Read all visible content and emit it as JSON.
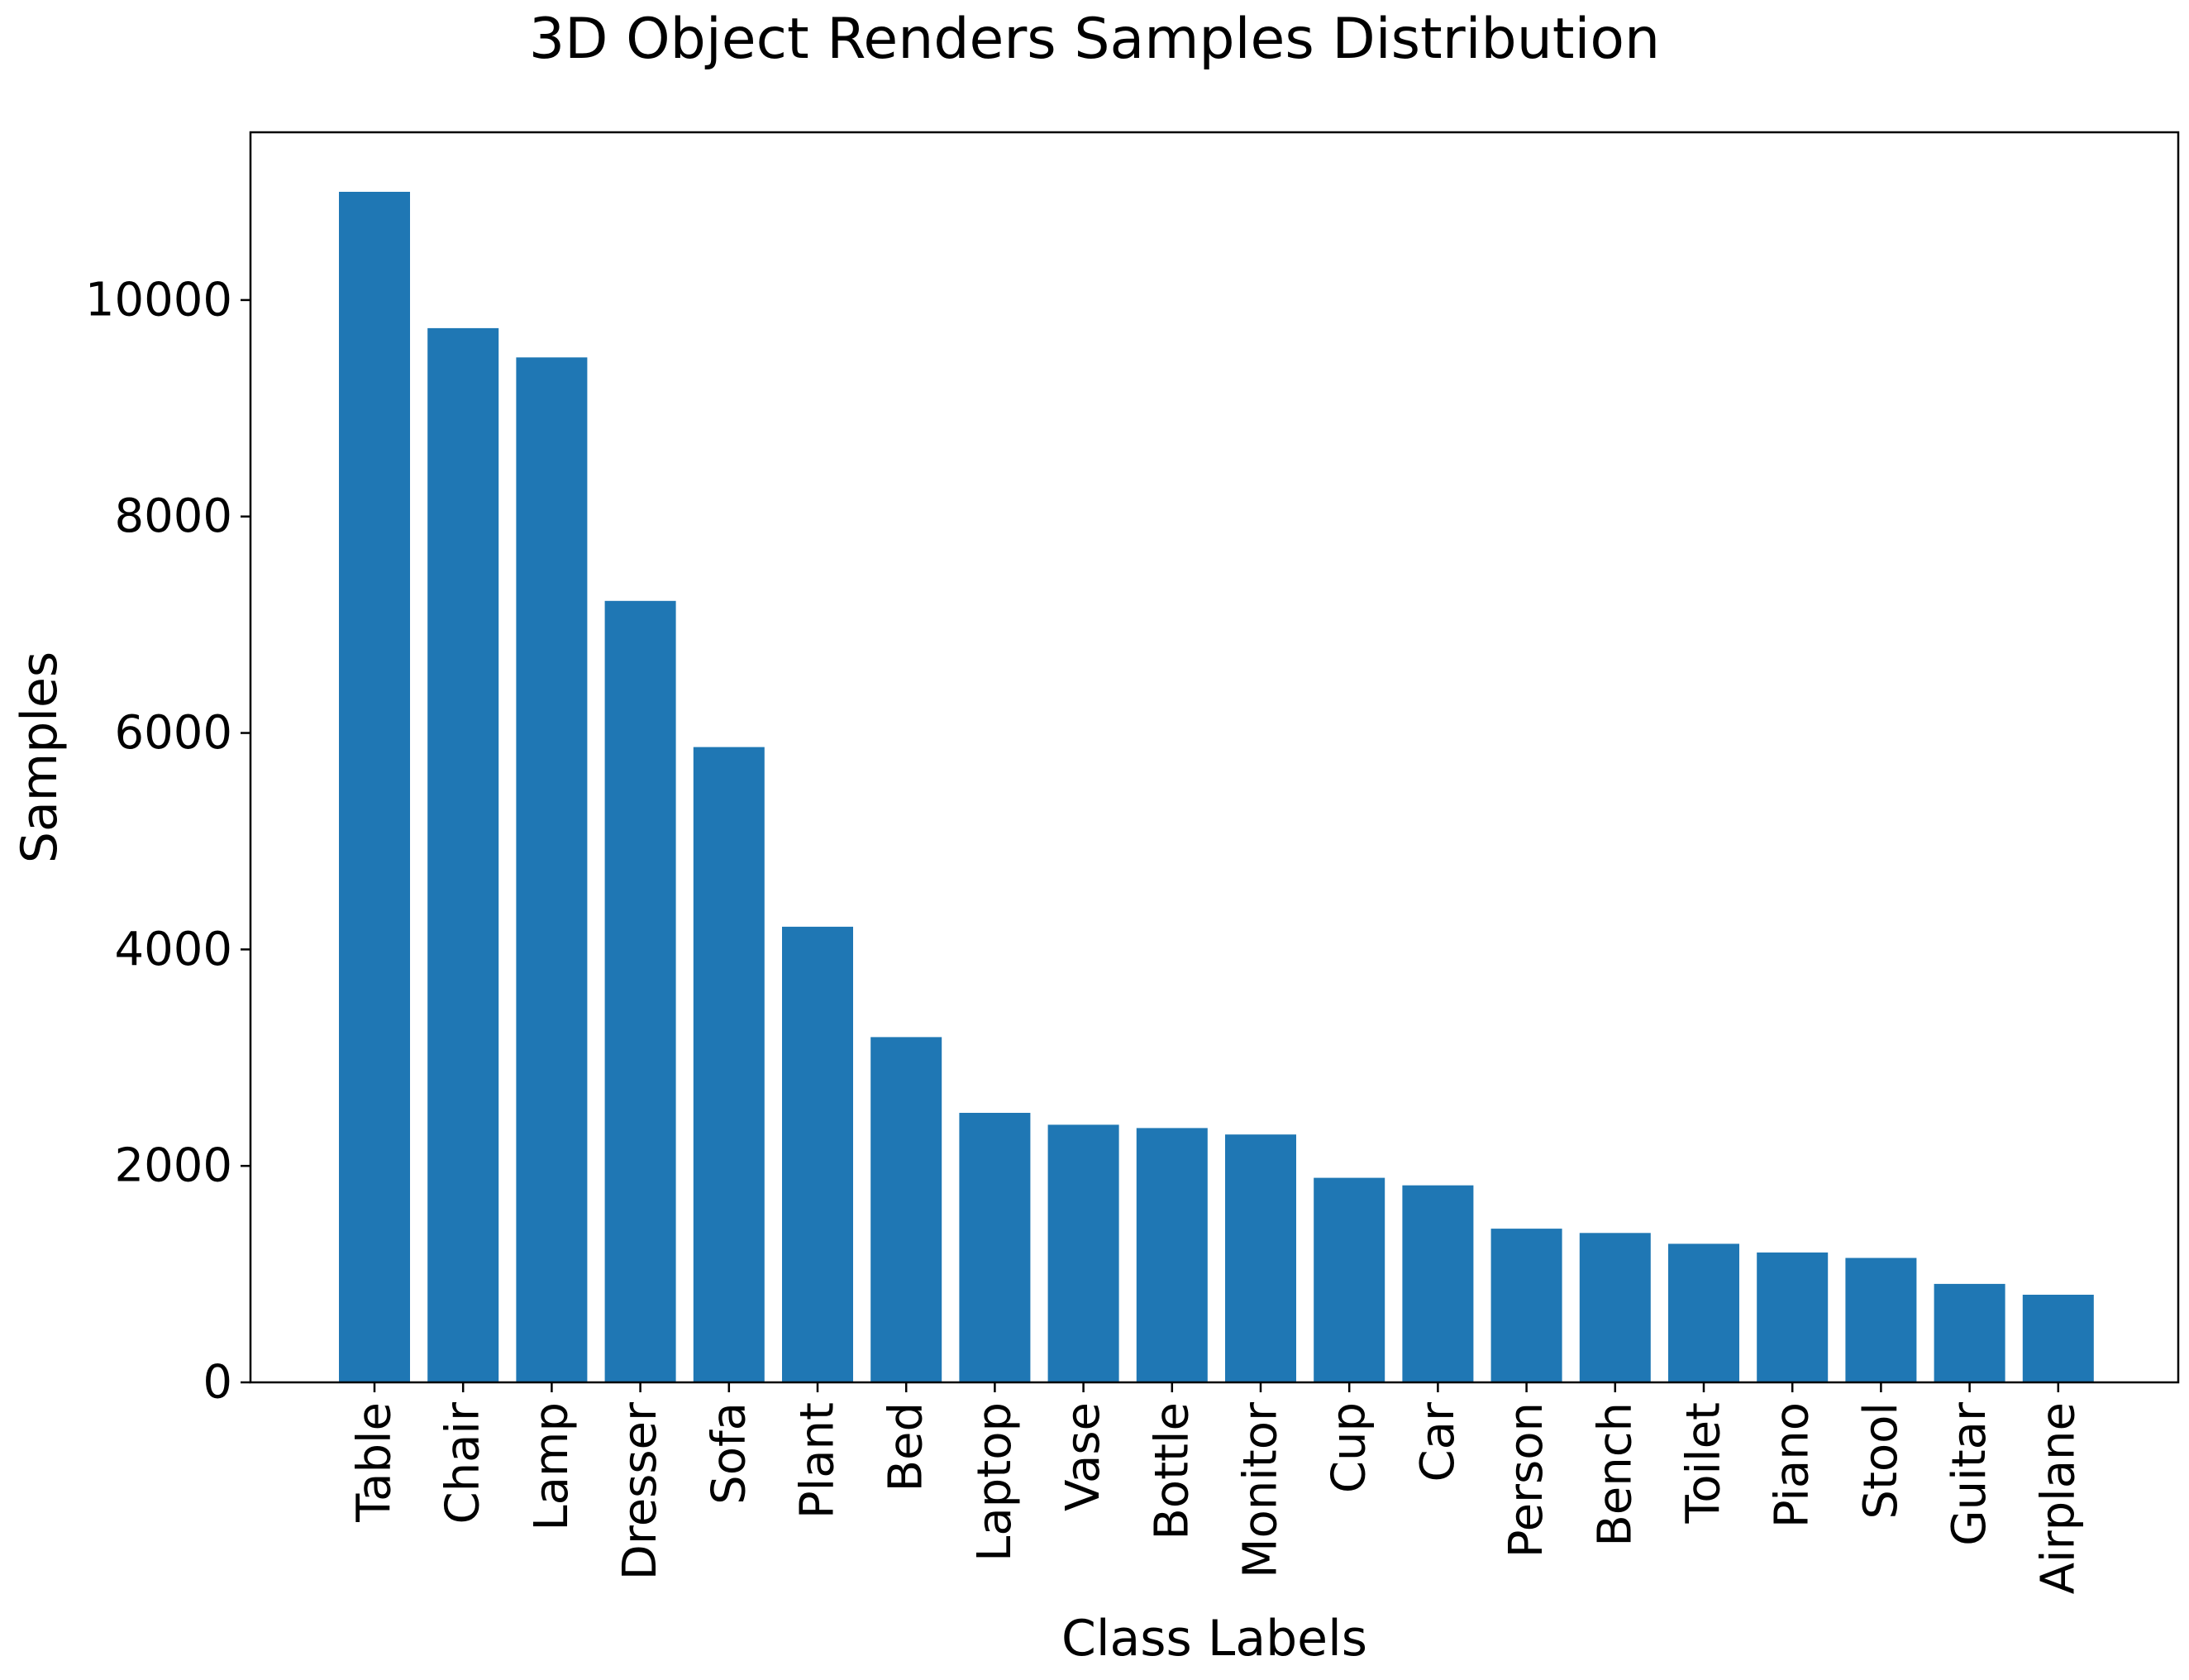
{
  "chart_data": {
    "type": "bar",
    "title": "3D Object Renders Samples Distribution",
    "xlabel": "Class Labels",
    "ylabel": "Samples",
    "categories": [
      "Table",
      "Chair",
      "Lamp",
      "Dresser",
      "Sofa",
      "Plant",
      "Bed",
      "Laptop",
      "Vase",
      "Bottle",
      "Monitor",
      "Cup",
      "Car",
      "Person",
      "Bench",
      "Toilet",
      "Piano",
      "Stool",
      "Guitar",
      "Airplane"
    ],
    "values": [
      11000,
      9740,
      9470,
      7220,
      5870,
      4210,
      3190,
      2490,
      2380,
      2350,
      2290,
      1890,
      1820,
      1420,
      1380,
      1280,
      1200,
      1150,
      910,
      810
    ],
    "ylim": [
      0,
      11550
    ],
    "yticks": [
      0,
      2000,
      4000,
      6000,
      8000,
      10000
    ],
    "ytick_labels": [
      "0",
      "2000",
      "4000",
      "6000",
      "8000",
      "10000"
    ],
    "grid": false,
    "bar_color": "#1f77b4"
  }
}
